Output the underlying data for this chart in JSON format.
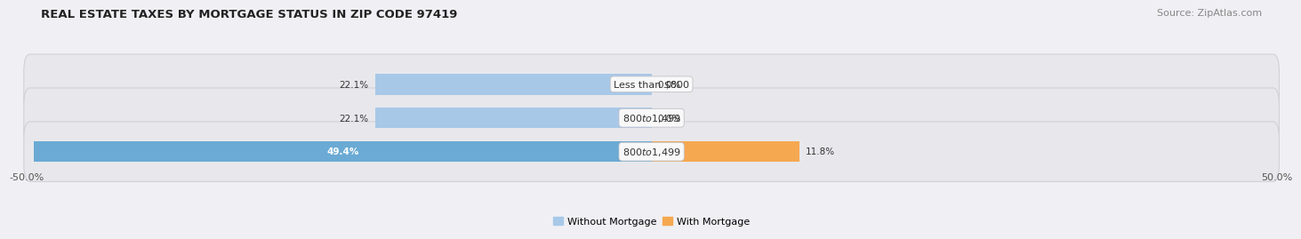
{
  "title": "REAL ESTATE TAXES BY MORTGAGE STATUS IN ZIP CODE 97419",
  "source": "Source: ZipAtlas.com",
  "rows": [
    {
      "label": "Less than $800",
      "without_mortgage": 22.1,
      "with_mortgage": 0.0
    },
    {
      "label": "$800 to $1,499",
      "without_mortgage": 22.1,
      "with_mortgage": 0.0
    },
    {
      "label": "$800 to $1,499",
      "without_mortgage": 49.4,
      "with_mortgage": 11.8
    }
  ],
  "xlim": [
    -50.0,
    50.0
  ],
  "x_ticks": [
    -50.0,
    50.0
  ],
  "bar_height": 0.62,
  "without_mortgage_color_weak": "#a8c8e8",
  "without_mortgage_color_strong": "#6aaad4",
  "with_mortgage_color_weak": "#f5c896",
  "with_mortgage_color_strong": "#f5a850",
  "row_bg_color": "#e8e8ec",
  "row_bg_edge_color": "#d0d0d8",
  "fig_bg_color": "#f0f0f4",
  "title_fontsize": 9.5,
  "source_fontsize": 8,
  "tick_fontsize": 8,
  "label_fontsize": 8,
  "legend_fontsize": 8,
  "value_fontsize": 7.5,
  "value_color_dark": "#333333",
  "value_color_white": "#ffffff",
  "label_box_facecolor": "#f8f8f8",
  "label_text_color": "#333333"
}
